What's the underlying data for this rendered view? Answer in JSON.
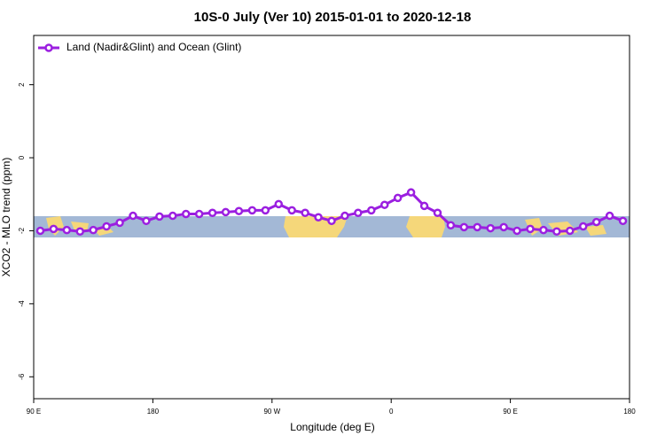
{
  "chart_data": {
    "type": "line",
    "title": "10S-0 July (Ver 10)   2015-01-01 to 2020-12-18",
    "x_label": "Longitude (deg E)",
    "y_label": "XCO2 - MLO trend (ppm)",
    "xlim": [
      90,
      540
    ],
    "xticks": [
      {
        "value": 90,
        "label": "90 E"
      },
      180,
      {
        "value": 270,
        "label": "90 W"
      },
      {
        "value": 360,
        "label": "0"
      },
      {
        "value": 450,
        "label": "90 E"
      },
      {
        "value": 540,
        "label": "180"
      }
    ],
    "ylim": [
      -6.6,
      3.35
    ],
    "yticks": [
      -6,
      -4,
      -2,
      0,
      2
    ],
    "legend": "top-left",
    "series": [
      {
        "name": "Land (Nadir&Glint) and Ocean (Glint)",
        "color": "#9b1fe0",
        "x": [
          95,
          105,
          115,
          125,
          135,
          145,
          155,
          165,
          175,
          185,
          195,
          205,
          215,
          225,
          235,
          245,
          255,
          265,
          275,
          285,
          295,
          305,
          315,
          325,
          335,
          345,
          355,
          365,
          375,
          385,
          395,
          405,
          415,
          425,
          435,
          445,
          455,
          465,
          475,
          485,
          495,
          505,
          515,
          525,
          535
        ],
        "values": [
          -2.0,
          -1.95,
          -1.98,
          -2.02,
          -1.98,
          -1.88,
          -1.78,
          -1.59,
          -1.73,
          -1.61,
          -1.59,
          -1.54,
          -1.54,
          -1.51,
          -1.49,
          -1.46,
          -1.44,
          -1.44,
          -1.27,
          -1.44,
          -1.51,
          -1.63,
          -1.73,
          -1.59,
          -1.51,
          -1.44,
          -1.29,
          -1.1,
          -0.95,
          -1.32,
          -1.51,
          -1.85,
          -1.9,
          -1.9,
          -1.93,
          -1.9,
          -2.0,
          -1.95,
          -1.98,
          -2.02,
          -2.0,
          -1.88,
          -1.76,
          -1.59,
          -1.73
        ]
      }
    ]
  }
}
